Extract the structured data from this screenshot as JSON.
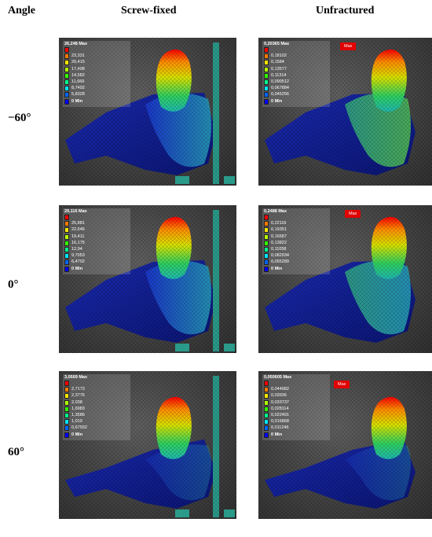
{
  "headers": {
    "angle": "Angle",
    "screw_fixed": "Screw-fixed",
    "unfractured": "Unfractured"
  },
  "rows": [
    {
      "angle": "−60°",
      "screw": {
        "max_label": "26,248 Max",
        "values": [
          "23,331",
          "20,415",
          "17,498",
          "14,582",
          "11,666",
          "8,7492",
          "5,8328",
          "2,9164"
        ],
        "min_label": "0 Min"
      },
      "unfr": {
        "max_label": "0,20365 Max",
        "values": [
          "0,18102",
          "0,1584",
          "0,13577",
          "0,11314",
          "0,090512",
          "0,067884",
          "0,045256",
          "0,022628"
        ],
        "min_label": "0 Min",
        "max_tag": "Max"
      }
    },
    {
      "angle": "0°",
      "screw": {
        "max_label": "29,116 Max",
        "values": [
          "25,881",
          "22,646",
          "19,411",
          "16,175",
          "12,94",
          "9,7053",
          "6,4702",
          "3,2351"
        ],
        "min_label": "0 Min"
      },
      "unfr": {
        "max_label": "0,2488 Max",
        "values": [
          "0,22116",
          "0,19351",
          "0,16587",
          "0,13822",
          "0,11058",
          "0,082934",
          "0,055289",
          "0,027645"
        ],
        "min_label": "0 Min",
        "max_tag": "Max"
      }
    },
    {
      "angle": "60°",
      "screw": {
        "max_label": "3,0569 Max",
        "values": [
          "2,7173",
          "2,3776",
          "2,038",
          "1,6983",
          "1,3586",
          "1,019",
          "0,67932",
          "0,33966"
        ],
        "min_label": "0 Min"
      },
      "unfr": {
        "max_label": "0,050605 Max",
        "values": [
          "0,044982",
          "0,03936",
          "0,033737",
          "0,028114",
          "0,022491",
          "0,016868",
          "0,011246",
          "0,0056228"
        ],
        "min_label": "0 Min",
        "max_tag": "Max"
      }
    }
  ],
  "legend_colors": [
    "#ff0000",
    "#ff7a00",
    "#ffe600",
    "#b4ff00",
    "#33ff00",
    "#00ff8c",
    "#00e5ff",
    "#0064ff",
    "#0000ff"
  ]
}
